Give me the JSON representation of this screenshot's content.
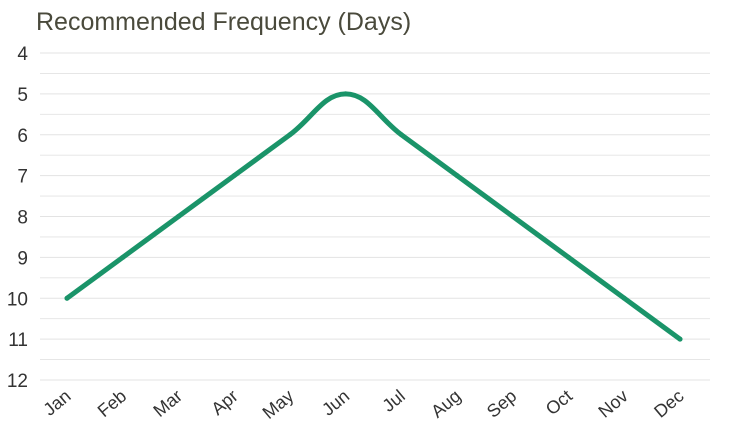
{
  "chart_data": {
    "type": "line",
    "title": "Recommended Frequency (Days)",
    "xlabel": "",
    "ylabel": "",
    "categories": [
      "Jan",
      "Feb",
      "Mar",
      "Apr",
      "May",
      "Jun",
      "Jul",
      "Aug",
      "Sep",
      "Oct",
      "Nov",
      "Dec"
    ],
    "series": [
      {
        "values": [
          10,
          9,
          8,
          7,
          6,
          5,
          6,
          7,
          8,
          9,
          10,
          11
        ]
      }
    ],
    "ylim": [
      4,
      12
    ],
    "y_inverted": true,
    "y_ticks": [
      4,
      5,
      6,
      7,
      8,
      9,
      10,
      11,
      12
    ],
    "grid": true,
    "line_color": "#1a9469",
    "grid_color": "#e3e3e3"
  }
}
